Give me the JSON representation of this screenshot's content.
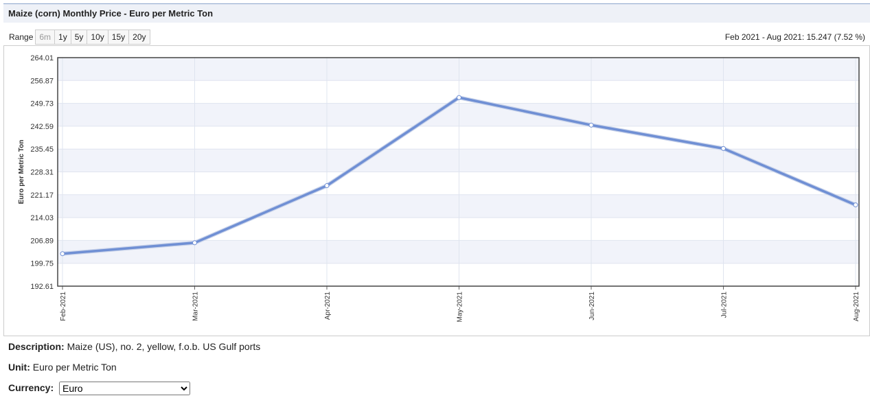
{
  "header": {
    "title": "Maize (corn) Monthly Price - Euro per Metric Ton"
  },
  "range": {
    "label": "Range",
    "buttons": [
      "6m",
      "1y",
      "5y",
      "10y",
      "15y",
      "20y"
    ],
    "summary": "Feb 2021 - Aug 2021: 15.247 (7.52 %)"
  },
  "chart_data": {
    "type": "line",
    "y_label": "Euro per Metric Ton",
    "categories": [
      "Feb-2021",
      "Mar-2021",
      "Apr-2021",
      "May-2021",
      "Jun-2021",
      "Jul-2021",
      "Aug-2021"
    ],
    "series": [
      {
        "name": "Maize",
        "color": "#6f8fd4",
        "values": [
          202.75,
          206.16,
          224.01,
          251.54,
          242.93,
          235.62,
          218.0
        ]
      }
    ],
    "ylim": [
      192.61,
      264.01
    ],
    "yticks": [
      192.61,
      199.75,
      206.89,
      214.03,
      221.17,
      228.31,
      235.45,
      242.59,
      249.73,
      256.87,
      264.01
    ],
    "grid": true
  },
  "info": {
    "description_label": "Description:",
    "description": "Maize (US), no. 2, yellow, f.o.b. US Gulf ports",
    "unit_label": "Unit:",
    "unit": "Euro per Metric Ton",
    "currency_label": "Currency:",
    "currency": "Euro"
  }
}
